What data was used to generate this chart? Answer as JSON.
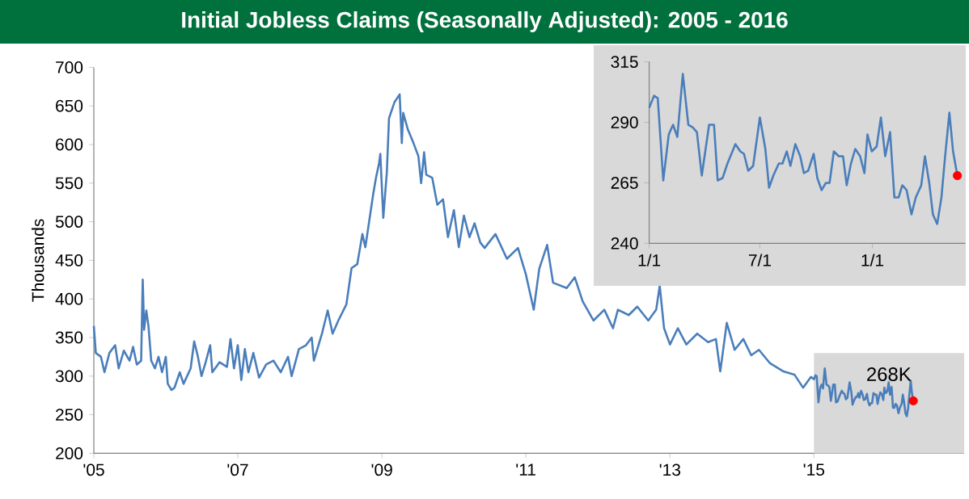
{
  "chart_data": [
    {
      "type": "line",
      "title": "Initial Jobless Claims (Seasonally Adjusted): 2005 - 2016",
      "ylabel": "Thousands",
      "xlim": [
        "2005-01-01",
        "2017-02-01"
      ],
      "ylim": [
        200,
        700
      ],
      "xticks": [
        {
          "value": "2005-01-01",
          "label": "'05"
        },
        {
          "value": "2007-01-01",
          "label": "'07"
        },
        {
          "value": "2009-01-01",
          "label": "'09"
        },
        {
          "value": "2011-01-01",
          "label": "'11"
        },
        {
          "value": "2013-01-01",
          "label": "'13"
        },
        {
          "value": "2015-01-01",
          "label": "'15"
        }
      ],
      "yticks": [
        200,
        250,
        300,
        350,
        400,
        450,
        500,
        550,
        600,
        650,
        700
      ],
      "x": [
        "2005-01-01",
        "2005-01-11",
        "2005-02-06",
        "2005-02-24",
        "2005-03-21",
        "2005-04-19",
        "2005-05-07",
        "2005-06-02",
        "2005-07-01",
        "2005-07-19",
        "2005-08-07",
        "2005-08-29",
        "2005-09-06",
        "2005-09-13",
        "2005-09-24",
        "2005-10-05",
        "2005-10-19",
        "2005-11-07",
        "2005-11-25",
        "2005-12-13",
        "2006-01-01",
        "2006-01-11",
        "2006-01-30",
        "2006-02-14",
        "2006-03-13",
        "2006-04-01",
        "2006-05-07",
        "2006-05-25",
        "2006-06-13",
        "2006-07-01",
        "2006-07-19",
        "2006-08-14",
        "2006-08-25",
        "2006-10-01",
        "2006-11-07",
        "2006-11-25",
        "2006-12-13",
        "2007-01-01",
        "2007-01-19",
        "2007-02-06",
        "2007-02-24",
        "2007-03-21",
        "2007-04-19",
        "2007-05-25",
        "2007-07-01",
        "2007-08-07",
        "2007-09-13",
        "2007-10-01",
        "2007-11-07",
        "2007-12-13",
        "2008-01-11",
        "2008-01-22",
        "2008-03-03",
        "2008-04-01",
        "2008-04-26",
        "2008-05-25",
        "2008-07-05",
        "2008-07-31",
        "2008-08-29",
        "2008-09-24",
        "2008-10-09",
        "2008-11-18",
        "2008-12-02",
        "2008-12-17",
        "2008-12-24",
        "2009-01-08",
        "2009-01-26",
        "2009-02-06",
        "2009-03-06",
        "2009-04-01",
        "2009-04-12",
        "2009-04-19",
        "2009-05-12",
        "2009-06-10",
        "2009-07-05",
        "2009-07-19",
        "2009-08-03",
        "2009-08-14",
        "2009-09-13",
        "2009-10-09",
        "2009-11-07",
        "2009-12-02",
        "2010-01-01",
        "2010-01-26",
        "2010-02-21",
        "2010-03-21",
        "2010-04-16",
        "2010-05-15",
        "2010-06-06",
        "2010-07-31",
        "2010-09-27",
        "2010-11-22",
        "2011-01-01",
        "2011-02-10",
        "2011-03-10",
        "2011-04-19",
        "2011-05-19",
        "2011-07-27",
        "2011-09-06",
        "2011-10-16",
        "2011-12-10",
        "2012-02-03",
        "2012-03-18",
        "2012-04-12",
        "2012-06-06",
        "2012-07-19",
        "2012-09-13",
        "2012-10-23",
        "2012-11-10",
        "2012-12-02",
        "2013-01-01",
        "2013-02-10",
        "2013-03-25",
        "2013-05-19",
        "2013-07-13",
        "2013-08-22",
        "2013-09-13",
        "2013-10-16",
        "2013-11-25",
        "2014-01-08",
        "2014-02-17",
        "2014-03-28",
        "2014-05-22",
        "2014-07-31",
        "2014-09-24",
        "2014-11-07",
        "2014-12-17",
        "2015-01-01",
        "2015-01-09",
        "2015-01-15",
        "2015-01-24",
        "2015-02-02",
        "2015-02-09",
        "2015-02-16",
        "2015-02-25",
        "2015-03-06",
        "2015-03-13",
        "2015-03-20",
        "2015-03-28",
        "2015-04-09",
        "2015-04-17",
        "2015-04-23",
        "2015-05-01",
        "2015-05-09",
        "2015-05-22",
        "2015-05-30",
        "2015-06-05",
        "2015-06-12",
        "2015-06-20",
        "2015-07-01",
        "2015-07-10",
        "2015-07-16",
        "2015-07-23",
        "2015-08-01",
        "2015-08-07",
        "2015-08-14",
        "2015-08-20",
        "2015-08-28",
        "2015-09-05",
        "2015-09-11",
        "2015-09-18",
        "2015-09-27",
        "2015-10-03",
        "2015-10-10",
        "2015-10-17",
        "2015-10-23",
        "2015-10-30",
        "2015-11-07",
        "2015-11-14",
        "2015-11-20",
        "2015-11-27",
        "2015-12-04",
        "2015-12-12",
        "2015-12-19",
        "2015-12-24",
        "2015-12-31",
        "2016-01-08",
        "2016-01-15",
        "2016-01-22",
        "2016-01-30",
        "2016-02-06",
        "2016-02-13",
        "2016-02-19",
        "2016-02-26",
        "2016-03-05",
        "2016-03-12",
        "2016-03-21",
        "2016-03-27",
        "2016-04-03",
        "2016-04-09",
        "2016-04-16",
        "2016-04-23",
        "2016-04-29",
        "2016-05-06",
        "2016-05-12",
        "2016-05-19"
      ],
      "series": [
        {
          "color": "#4a7ebb",
          "values": [
            365,
            330,
            325,
            305,
            330,
            340,
            310,
            333,
            320,
            338,
            315,
            320,
            425,
            360,
            385,
            365,
            320,
            310,
            325,
            305,
            325,
            290,
            282,
            285,
            305,
            290,
            310,
            345,
            325,
            300,
            315,
            340,
            305,
            318,
            312,
            348,
            310,
            340,
            295,
            335,
            305,
            330,
            298,
            315,
            320,
            305,
            325,
            300,
            335,
            340,
            350,
            320,
            355,
            385,
            355,
            372,
            393,
            440,
            445,
            484,
            467,
            536,
            557,
            575,
            588,
            505,
            564,
            634,
            655,
            665,
            602,
            641,
            620,
            602,
            585,
            550,
            590,
            561,
            557,
            522,
            529,
            480,
            515,
            467,
            508,
            480,
            498,
            473,
            466,
            484,
            452,
            466,
            432,
            386,
            439,
            470,
            421,
            414,
            428,
            397,
            372,
            386,
            362,
            386,
            379,
            390,
            372,
            386,
            417,
            362,
            341,
            362,
            341,
            355,
            344,
            348,
            306,
            369,
            334,
            348,
            327,
            334,
            317,
            306,
            302,
            285,
            299,
            296,
            301,
            300,
            266,
            285,
            289,
            284,
            310,
            289,
            288,
            286,
            268,
            289,
            289,
            266,
            267,
            273,
            281,
            278,
            277,
            270,
            272,
            292,
            279,
            263,
            268,
            273,
            273,
            278,
            272,
            281,
            276,
            269,
            270,
            277,
            267,
            262,
            265,
            265,
            278,
            276,
            276,
            264,
            273,
            279,
            276,
            269,
            285,
            278,
            280,
            292,
            276,
            286,
            259,
            259,
            264,
            262,
            252,
            259,
            264,
            276,
            265,
            252,
            248,
            259,
            276,
            294,
            278,
            268
          ]
        },
        {
          "type": "scatter",
          "marker": "circle",
          "color": "#ff0000",
          "x": [
            "2016-05-19"
          ],
          "values": [
            268
          ]
        }
      ],
      "annotations": [
        {
          "text": "268K",
          "x": "2016-05-19",
          "y": 268
        }
      ],
      "bands": [
        {
          "axis": "x",
          "from": "2015-01-01",
          "to": "2017-02-01",
          "color": "#d9d9d9"
        }
      ]
    },
    {
      "type": "line",
      "xlim": [
        "2015-01-01",
        "2016-06-01"
      ],
      "ylim": [
        240,
        315
      ],
      "xticks": [
        {
          "value": "2015-01-01",
          "label": "1/1"
        },
        {
          "value": "2015-07-01",
          "label": "7/1"
        },
        {
          "value": "2016-01-01",
          "label": "1/1"
        }
      ],
      "yticks": [
        240,
        265,
        290,
        315
      ],
      "x": [
        "2015-01-01",
        "2015-01-09",
        "2015-01-15",
        "2015-01-24",
        "2015-02-02",
        "2015-02-09",
        "2015-02-16",
        "2015-02-25",
        "2015-03-06",
        "2015-03-13",
        "2015-03-20",
        "2015-03-28",
        "2015-04-09",
        "2015-04-17",
        "2015-04-23",
        "2015-05-01",
        "2015-05-09",
        "2015-05-22",
        "2015-05-30",
        "2015-06-05",
        "2015-06-12",
        "2015-06-20",
        "2015-07-01",
        "2015-07-10",
        "2015-07-16",
        "2015-07-23",
        "2015-08-01",
        "2015-08-07",
        "2015-08-14",
        "2015-08-20",
        "2015-08-28",
        "2015-09-05",
        "2015-09-11",
        "2015-09-18",
        "2015-09-27",
        "2015-10-03",
        "2015-10-10",
        "2015-10-17",
        "2015-10-23",
        "2015-10-30",
        "2015-11-07",
        "2015-11-14",
        "2015-11-20",
        "2015-11-27",
        "2015-12-04",
        "2015-12-12",
        "2015-12-19",
        "2015-12-24",
        "2015-12-31",
        "2016-01-08",
        "2016-01-15",
        "2016-01-22",
        "2016-01-30",
        "2016-02-06",
        "2016-02-13",
        "2016-02-19",
        "2016-02-26",
        "2016-03-05",
        "2016-03-12",
        "2016-03-21",
        "2016-03-27",
        "2016-04-03",
        "2016-04-09",
        "2016-04-16",
        "2016-04-23",
        "2016-04-29",
        "2016-05-06",
        "2016-05-12",
        "2016-05-19"
      ],
      "series": [
        {
          "color": "#4a7ebb",
          "values": [
            296,
            301,
            300,
            266,
            285,
            289,
            284,
            310,
            289,
            288,
            286,
            268,
            289,
            289,
            266,
            267,
            273,
            281,
            278,
            277,
            270,
            272,
            292,
            279,
            263,
            268,
            273,
            273,
            278,
            272,
            281,
            276,
            269,
            270,
            277,
            267,
            262,
            265,
            265,
            278,
            276,
            276,
            264,
            273,
            279,
            276,
            269,
            285,
            278,
            280,
            292,
            276,
            286,
            259,
            259,
            264,
            262,
            252,
            259,
            264,
            276,
            265,
            252,
            248,
            259,
            276,
            294,
            278,
            268
          ]
        },
        {
          "type": "scatter",
          "marker": "circle",
          "color": "#ff0000",
          "x": [
            "2016-05-19"
          ],
          "values": [
            268
          ]
        }
      ]
    }
  ]
}
